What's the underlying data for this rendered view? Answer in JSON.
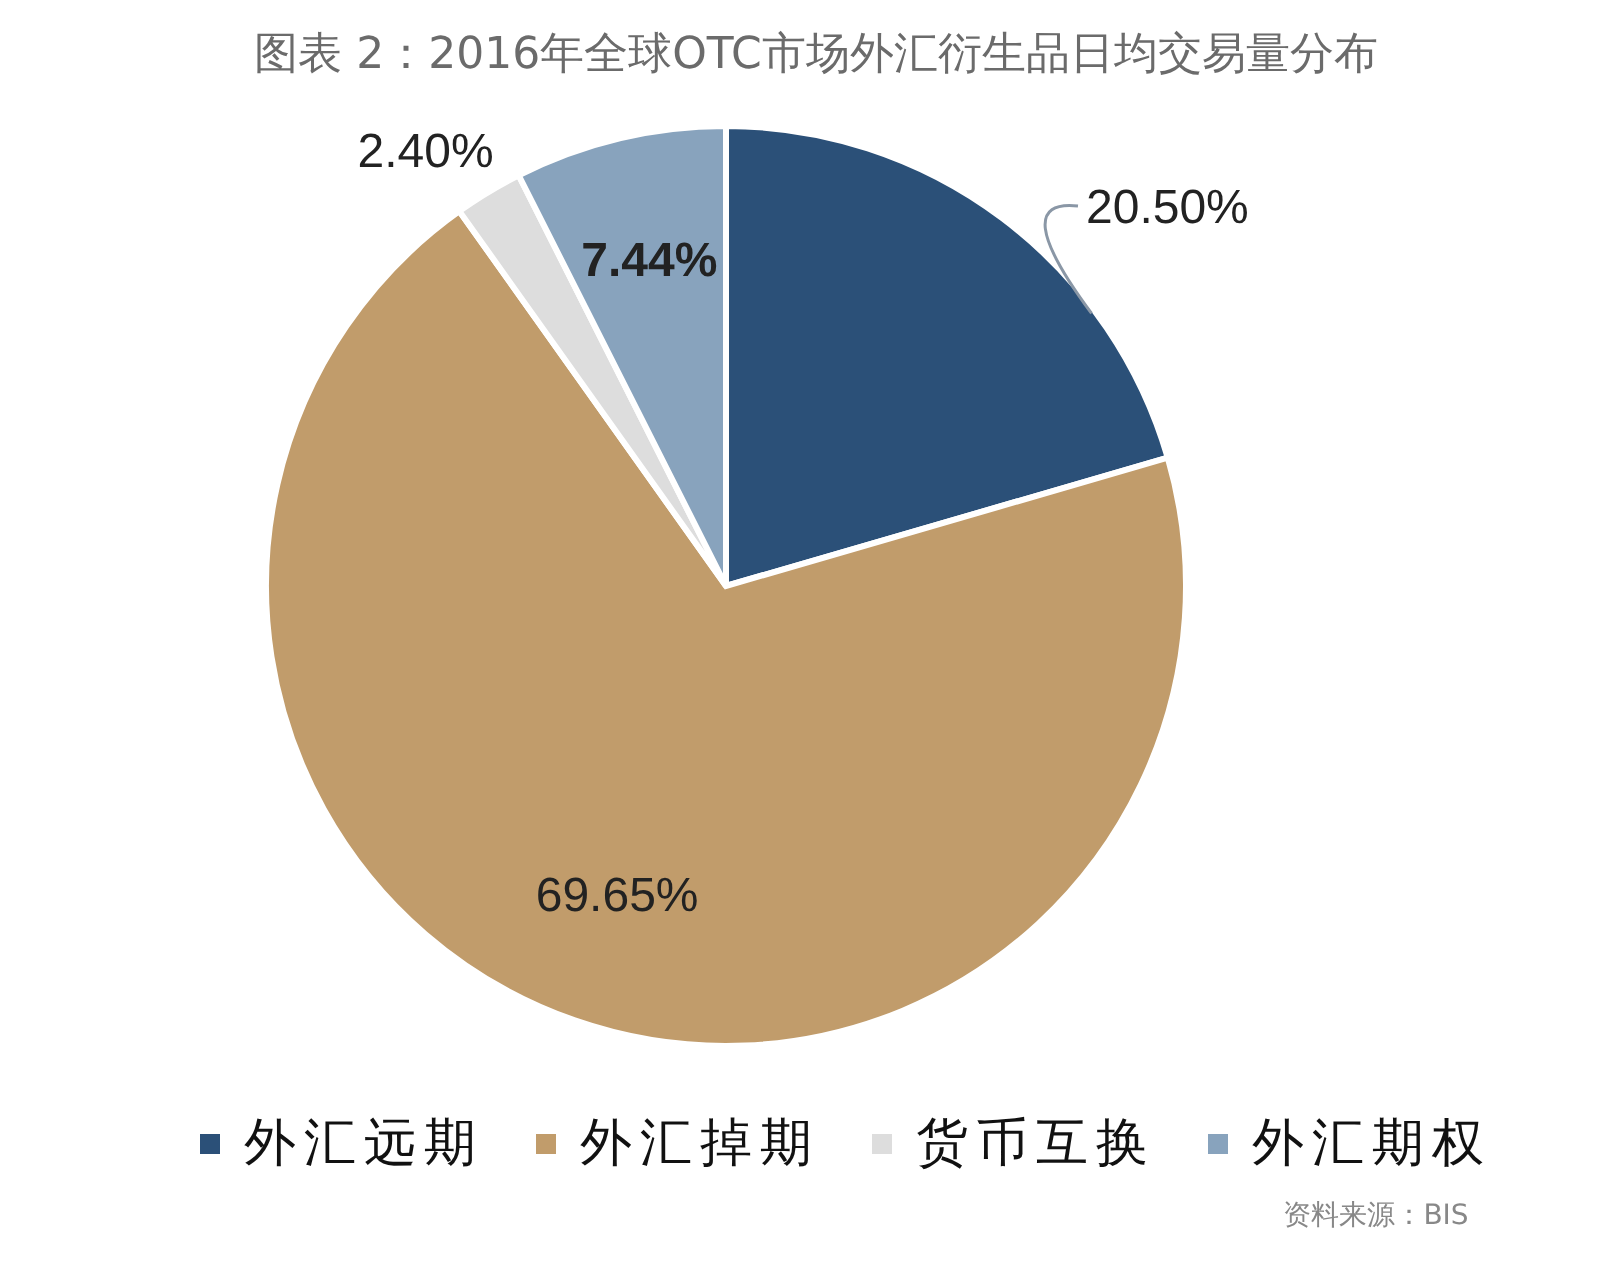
{
  "chart_data": {
    "type": "pie",
    "title": "图表 2：2016年全球OTC市场外汇衍生品日均交易量分布",
    "categories": [
      "外汇远期",
      "外汇掉期",
      "货币互换",
      "外汇期权"
    ],
    "values": [
      20.5,
      69.65,
      2.4,
      7.44
    ],
    "colors": [
      "#2b5078",
      "#c19c6b",
      "#dddddd",
      "#88a3bd"
    ],
    "value_labels": [
      "20.50%",
      "69.65%",
      "2.40%",
      "7.44%"
    ],
    "legend": "bottom",
    "annotations": [
      "资料来源：BIS"
    ]
  }
}
